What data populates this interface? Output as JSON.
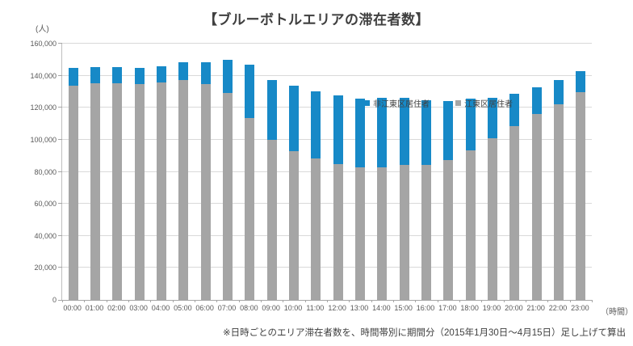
{
  "title": "【ブルーボトルエリアの滞在者数】",
  "y_axis_unit": "(人)",
  "x_axis_unit": "（時間）",
  "footnote": "※日時ごとのエリア滞在者数を、時間帯別に期間分（2015年1月30日～4月15日）足し上げて算出",
  "colors": {
    "non_koto_blue": "#1789C7",
    "koto_gray": "#A5A5A5",
    "gridline": "#D9D9D9",
    "axis": "#BFBFBF",
    "tick_text": "#595959",
    "title_text": "#3F3F3F"
  },
  "legend": {
    "items": [
      {
        "label": "非江東区居住者",
        "color_key": "non_koto_blue"
      },
      {
        "label": "江東区居住者",
        "color_key": "koto_gray"
      }
    ]
  },
  "chart_data": {
    "type": "bar",
    "stacked": true,
    "title": "【ブルーボトルエリアの滞在者数】",
    "xlabel": "（時間）",
    "ylabel": "(人)",
    "ylim": [
      0,
      160000
    ],
    "ytick_step": 20000,
    "ytick_labels": [
      "0",
      "20,000",
      "40,000",
      "60,000",
      "80,000",
      "100,000",
      "120,000",
      "140,000",
      "160,000"
    ],
    "grid": true,
    "legend_position": "top-right-inside",
    "categories": [
      "00:00",
      "01:00",
      "02:00",
      "03:00",
      "04:00",
      "05:00",
      "06:00",
      "07:00",
      "08:00",
      "09:00",
      "10:00",
      "11:00",
      "12:00",
      "13:00",
      "14:00",
      "15:00",
      "16:00",
      "17:00",
      "18:00",
      "19:00",
      "20:00",
      "21:00",
      "22:00",
      "23:00"
    ],
    "series": [
      {
        "name": "非江東区居住者",
        "stack_order": "top",
        "color_key": "non_koto_blue",
        "values": [
          11000,
          10000,
          10000,
          10000,
          10000,
          11000,
          13500,
          20500,
          33500,
          37500,
          41000,
          42000,
          43000,
          43000,
          43500,
          42000,
          40500,
          37000,
          32500,
          25000,
          20000,
          16500,
          15000,
          13000
        ]
      },
      {
        "name": "江東区居住者",
        "stack_order": "bottom",
        "color_key": "koto_gray",
        "values": [
          134000,
          135500,
          135500,
          135000,
          136000,
          137500,
          135000,
          129000,
          113500,
          100000,
          93000,
          88500,
          85000,
          83000,
          83000,
          84500,
          84500,
          87500,
          93500,
          101000,
          108500,
          116000,
          122000,
          129500
        ]
      }
    ]
  }
}
